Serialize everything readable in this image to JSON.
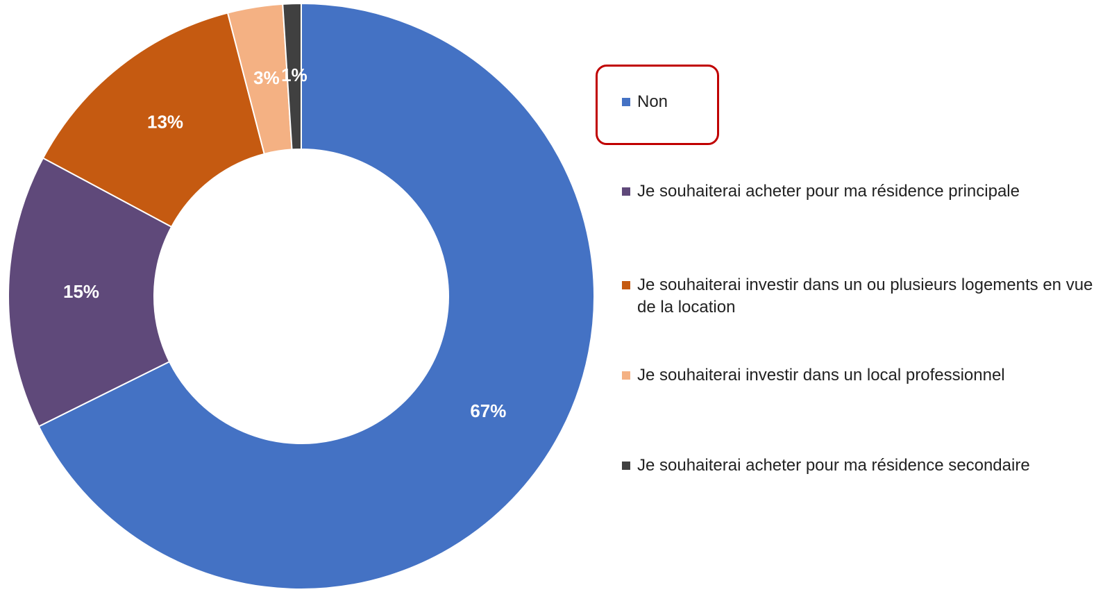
{
  "chart_data": {
    "type": "donut",
    "categories": [
      "Non",
      "Je souhaiterai acheter pour ma résidence principale",
      "Je souhaiterai investir dans un ou plusieurs logements en vue de la location",
      "Je souhaiterai investir dans un local professionnel",
      "Je souhaiterai acheter pour ma résidence secondaire"
    ],
    "values": [
      67,
      15,
      13,
      3,
      1
    ],
    "value_labels": [
      "67%",
      "15%",
      "13%",
      "3%",
      "1%"
    ],
    "colors": [
      "#4472c4",
      "#5f497a",
      "#c55a11",
      "#f4b183",
      "#404040"
    ],
    "legend": "right"
  }
}
